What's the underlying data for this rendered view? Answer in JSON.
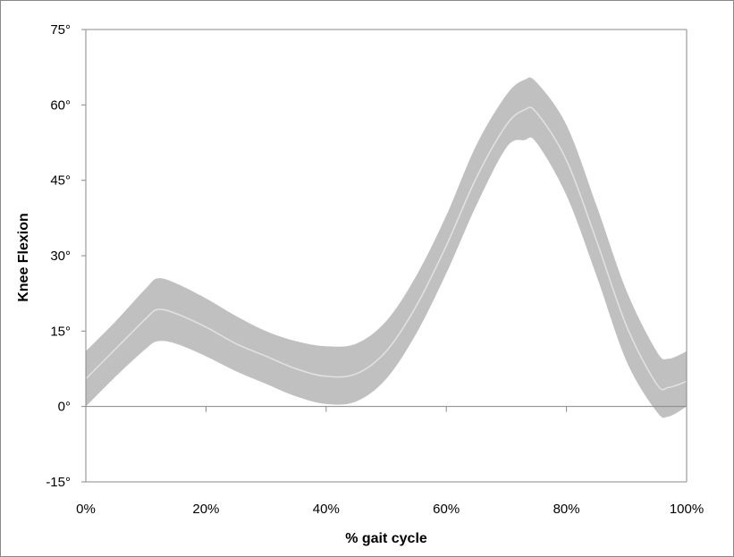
{
  "chart_data": {
    "type": "area",
    "xlabel": "% gait cycle",
    "ylabel": "Knee Flexion",
    "xlim": [
      0,
      100
    ],
    "ylim": [
      -15,
      75
    ],
    "x_ticks": [
      {
        "value": 0,
        "label": "0%"
      },
      {
        "value": 20,
        "label": "20%"
      },
      {
        "value": 40,
        "label": "40%"
      },
      {
        "value": 60,
        "label": "60%"
      },
      {
        "value": 80,
        "label": "80%"
      },
      {
        "value": 100,
        "label": "100%"
      }
    ],
    "y_ticks": [
      {
        "value": 75,
        "label": "75°"
      },
      {
        "value": 60,
        "label": "60°"
      },
      {
        "value": 45,
        "label": "45°"
      },
      {
        "value": 30,
        "label": "30°"
      },
      {
        "value": 15,
        "label": "15°"
      },
      {
        "value": 0,
        "label": "0°"
      },
      {
        "value": -15,
        "label": "-15°"
      }
    ],
    "grid": false,
    "legend": "none",
    "series": [
      {
        "x": [
          0,
          5,
          10,
          12,
          15,
          20,
          25,
          30,
          35,
          40,
          45,
          50,
          55,
          60,
          65,
          70,
          73,
          75,
          80,
          85,
          90,
          95,
          97,
          100
        ],
        "mean": [
          5.5,
          11.5,
          17.5,
          19.3,
          18.5,
          15.8,
          12.5,
          10,
          7.5,
          6,
          6.5,
          11,
          20,
          32,
          45.5,
          56,
          59,
          58.5,
          49,
          33,
          16,
          4.5,
          3.8,
          5
        ],
        "upper": [
          11,
          17,
          23.5,
          25.5,
          24.5,
          21.5,
          18,
          15,
          13,
          12,
          12.5,
          17,
          26,
          38,
          52,
          62,
          65,
          64.5,
          56,
          40,
          23,
          11,
          9.5,
          11
        ],
        "lower": [
          0,
          6,
          11.5,
          13,
          12.5,
          10,
          7,
          4.5,
          2,
          0.5,
          1,
          5.5,
          14.5,
          26.5,
          40,
          51.5,
          53,
          52.5,
          42,
          26,
          9,
          -1,
          -2,
          0
        ],
        "band_color": "#c0c0c0",
        "line_color": "#e2e2e2"
      }
    ],
    "colors": {
      "background": "#ffffff",
      "axis": "#888888",
      "text": "#000000"
    }
  }
}
